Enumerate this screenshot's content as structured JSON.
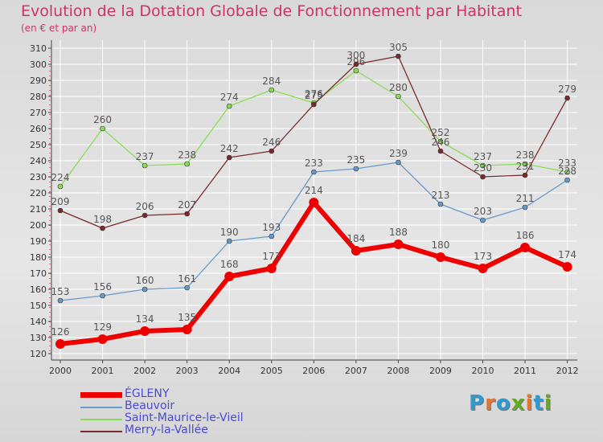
{
  "header": {
    "title": "Evolution de la Dotation Globale de Fonctionnement par Habitant",
    "subtitle": "(en € et par an)"
  },
  "logo": {
    "text": "Proxiti",
    "colors": [
      "#3399cc",
      "#e8742a",
      "#3399cc",
      "#66aa22",
      "#e8742a",
      "#3399cc",
      "#66aa22"
    ]
  },
  "chart_data": {
    "type": "line",
    "categories": [
      "2000",
      "2001",
      "2002",
      "2003",
      "2004",
      "2005",
      "2006",
      "2007",
      "2008",
      "2009",
      "2010",
      "2011",
      "2012"
    ],
    "ylim": [
      120,
      310
    ],
    "yticks": [
      120,
      130,
      140,
      150,
      160,
      170,
      180,
      190,
      200,
      210,
      220,
      230,
      240,
      250,
      260,
      270,
      280,
      290,
      300,
      310
    ],
    "grid": true,
    "legend_position": "bottom-left",
    "series": [
      {
        "name": "Saint-Maurice-le-Vieil",
        "color": "#88dd55",
        "stroke_width": 1.3,
        "marker": 3,
        "bold": false,
        "values": [
          224,
          260,
          237,
          238,
          274,
          284,
          276,
          296,
          280,
          252,
          237,
          238,
          233
        ],
        "labels": [
          "224",
          "260",
          "237",
          "238",
          "274",
          "284",
          "276",
          "296",
          "280",
          "252",
          "237",
          "238",
          "233"
        ]
      },
      {
        "name": "Merry-la-Vallée",
        "color": "#7a2a2a",
        "stroke_width": 1.3,
        "marker": 3,
        "bold": false,
        "values": [
          209,
          198,
          206,
          207,
          242,
          246,
          275,
          300,
          305,
          246,
          230,
          231,
          279
        ],
        "labels": [
          "209",
          "198",
          "206",
          "207",
          "242",
          "246",
          "275",
          "300",
          "305",
          "246",
          "230",
          "231",
          "279"
        ]
      },
      {
        "name": "Beauvoir",
        "color": "#6699cc",
        "stroke_width": 1.3,
        "marker": 3,
        "bold": false,
        "values": [
          153,
          156,
          160,
          161,
          190,
          193,
          233,
          235,
          239,
          213,
          203,
          211,
          228
        ],
        "labels": [
          "153",
          "156",
          "160",
          "161",
          "190",
          "193",
          "233",
          "235",
          "239",
          "213",
          "203",
          "211",
          "228"
        ]
      },
      {
        "name": "ÉGLENY",
        "color": "#ee0000",
        "stroke_width": 6,
        "marker": 6,
        "bold": true,
        "values": [
          126,
          129,
          134,
          135,
          168,
          173,
          214,
          184,
          188,
          180,
          173,
          186,
          174
        ],
        "labels": [
          "126",
          "129",
          "134",
          "135",
          "168",
          "173",
          "214",
          "184",
          "188",
          "180",
          "173",
          "186",
          "174"
        ]
      }
    ],
    "legend": [
      {
        "name": "ÉGLENY",
        "color": "#ee0000",
        "thickness": 7
      },
      {
        "name": "Beauvoir",
        "color": "#6699cc",
        "thickness": 2
      },
      {
        "name": "Saint-Maurice-le-Vieil",
        "color": "#88dd55",
        "thickness": 2
      },
      {
        "name": "Merry-la-Vallée",
        "color": "#7a2a2a",
        "thickness": 2
      }
    ]
  }
}
